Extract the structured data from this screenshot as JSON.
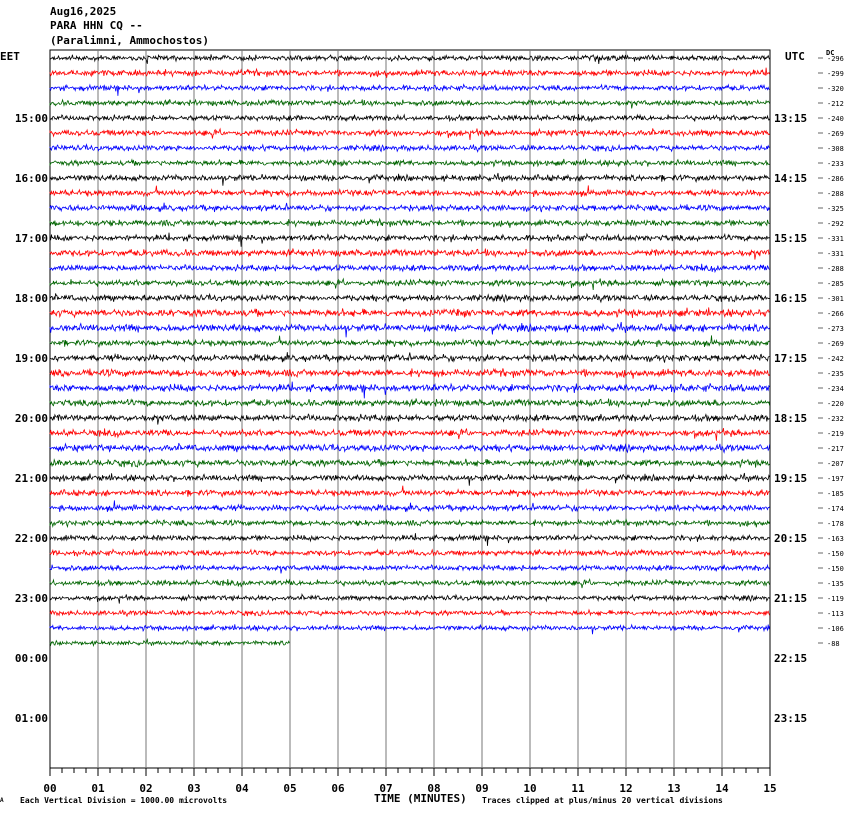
{
  "header": {
    "date": "Aug16,2025",
    "station": "PARA HHN CQ --",
    "location": "(Paralimni, Ammochostos)"
  },
  "left_zone": "EET",
  "right_zone": "UTC",
  "dc_label": "DC",
  "footer": {
    "scale_note": "Each Vertical Division = 1000.00 microvolts",
    "x_title": "TIME (MINUTES)",
    "clip_note": "Traces clipped at plus/minus 20 vertical divisions",
    "corner_mark": "A"
  },
  "colors": {
    "trace_cycle": [
      "#000000",
      "#ff0000",
      "#0000ff",
      "#006400"
    ],
    "grid": "#777777",
    "background": "#ffffff"
  },
  "chart_data": {
    "type": "line",
    "title": "",
    "xlabel": "TIME (MINUTES)",
    "xlim": [
      0,
      15
    ],
    "x_ticks": [
      "00",
      "01",
      "02",
      "03",
      "04",
      "05",
      "06",
      "07",
      "08",
      "09",
      "10",
      "11",
      "12",
      "13",
      "14",
      "15"
    ],
    "left_hour_labels": [
      "15:00",
      "16:00",
      "17:00",
      "18:00",
      "19:00",
      "20:00",
      "21:00",
      "22:00",
      "23:00",
      "00:00",
      "01:00"
    ],
    "right_hour_labels": [
      "13:15",
      "14:15",
      "15:15",
      "16:15",
      "17:15",
      "18:15",
      "19:15",
      "20:15",
      "21:15",
      "22:15",
      "23:15"
    ],
    "traces_per_hour": 4,
    "trace_count": 40,
    "last_trace_end_minute": 5,
    "dc_offsets": [
      -296,
      -299,
      -320,
      -212,
      -240,
      -269,
      -308,
      -233,
      -286,
      -288,
      -325,
      -292,
      -331,
      -331,
      -288,
      -285,
      -301,
      -266,
      -273,
      -269,
      -242,
      -235,
      -234,
      -220,
      -232,
      -219,
      -217,
      -207,
      -197,
      -185,
      -174,
      -178,
      -163,
      -150,
      -150,
      -135,
      -119,
      -113,
      -106,
      -88
    ],
    "relative_amplitude": [
      0.9,
      1.0,
      0.9,
      0.9,
      0.9,
      1.0,
      0.9,
      0.9,
      1.0,
      1.0,
      1.0,
      1.0,
      1.0,
      1.1,
      1.0,
      1.0,
      1.0,
      1.2,
      1.2,
      1.0,
      1.1,
      1.2,
      1.2,
      1.1,
      1.1,
      1.1,
      1.1,
      1.1,
      1.0,
      1.0,
      1.0,
      0.9,
      0.9,
      0.9,
      0.9,
      0.9,
      0.8,
      0.8,
      0.8,
      0.7
    ],
    "grid": true
  }
}
